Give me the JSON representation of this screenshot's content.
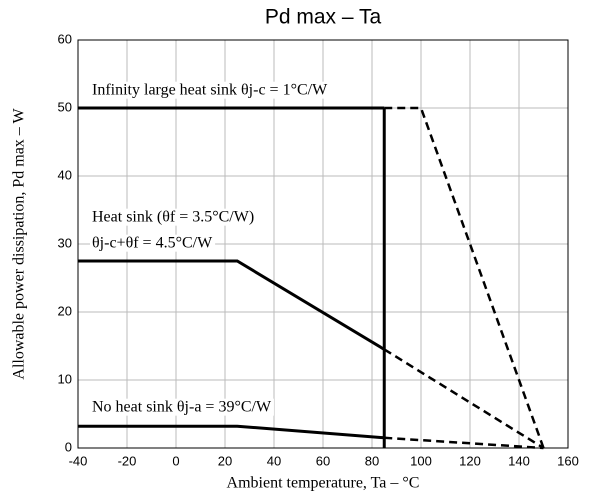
{
  "chart_data": {
    "type": "line",
    "title": "Pd max  –  Ta",
    "xlabel": "Ambient temperature,  Ta  –  °C",
    "ylabel": "Allowable power dissipation,  Pd max  –  W",
    "xlim": [
      -40,
      160
    ],
    "xticks": [
      -40,
      -20,
      0,
      20,
      40,
      60,
      80,
      100,
      120,
      140,
      160
    ],
    "ylim": [
      0,
      60
    ],
    "yticks": [
      0,
      10,
      20,
      30,
      40,
      50,
      60
    ],
    "grid": true,
    "series": [
      {
        "color": "#000000",
        "dashed": false,
        "x": [
          -40,
          85
        ],
        "values": [
          50,
          50
        ]
      },
      {
        "color": "#000000",
        "dashed": true,
        "x": [
          85,
          100,
          150
        ],
        "values": [
          50,
          50,
          0
        ]
      },
      {
        "color": "#000000",
        "dashed": false,
        "x": [
          -40,
          25,
          85
        ],
        "values": [
          27.5,
          27.5,
          14.5
        ]
      },
      {
        "color": "#000000",
        "dashed": true,
        "x": [
          85,
          150
        ],
        "values": [
          14.5,
          0
        ]
      },
      {
        "color": "#000000",
        "dashed": false,
        "x": [
          -40,
          25,
          85
        ],
        "values": [
          3.2,
          3.2,
          1.5
        ]
      },
      {
        "color": "#000000",
        "dashed": true,
        "x": [
          85,
          150
        ],
        "values": [
          1.5,
          0
        ]
      },
      {
        "color": "#000000",
        "dashed": false,
        "x": [
          85,
          85
        ],
        "values": [
          50,
          0
        ]
      }
    ],
    "annotations": [
      "Infinity large heat sink θj-c = 1°C/W",
      "Heat sink (θf = 3.5°C/W)",
      "θj-c+θf = 4.5°C/W",
      "No heat sink θj-a = 39°C/W"
    ]
  }
}
